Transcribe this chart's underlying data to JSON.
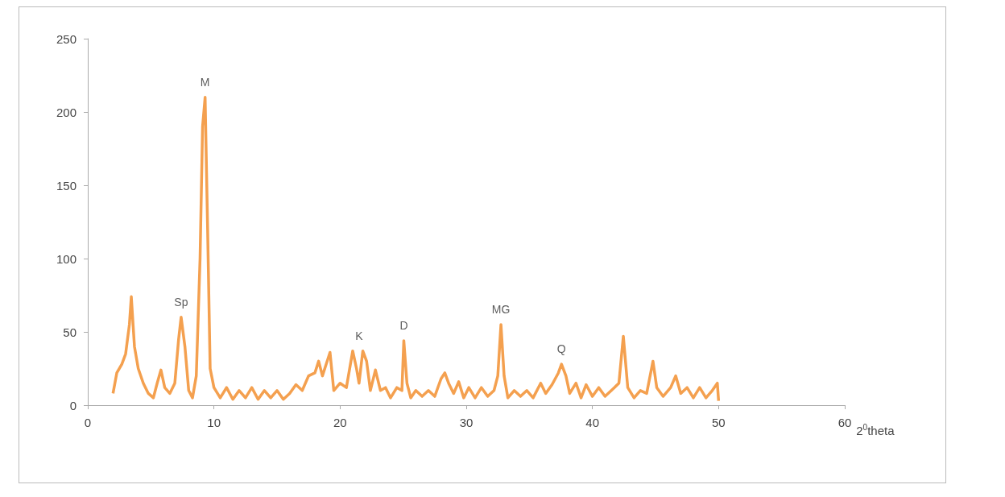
{
  "chart_data": {
    "type": "line",
    "xlabel": "2$^{0}$theta",
    "xlim": [
      0,
      60
    ],
    "xticks": [
      0,
      10,
      20,
      30,
      40,
      50,
      60
    ],
    "ylim": [
      0,
      250
    ],
    "yticks": [
      0,
      50,
      100,
      150,
      200,
      250
    ],
    "grid": false,
    "marker": "none",
    "line_style": "solid",
    "annotations": [
      {
        "text": "Sp",
        "x": 7.4,
        "y": 60
      },
      {
        "text": "M",
        "x": 9.3,
        "y": 210
      },
      {
        "text": "K",
        "x": 21.5,
        "y": 37
      },
      {
        "text": "D",
        "x": 25.05,
        "y": 44
      },
      {
        "text": "MG",
        "x": 32.75,
        "y": 55
      },
      {
        "text": "Q",
        "x": 37.55,
        "y": 28
      }
    ],
    "series": [
      {
        "color": "#f4a04f",
        "x": [
          2.0,
          2.3,
          2.7,
          3.0,
          3.3,
          3.45,
          3.7,
          4.0,
          4.4,
          4.8,
          5.2,
          5.5,
          5.8,
          6.1,
          6.5,
          6.9,
          7.2,
          7.4,
          7.7,
          8.0,
          8.3,
          8.6,
          8.9,
          9.1,
          9.3,
          9.5,
          9.7,
          10.0,
          10.5,
          11,
          11.5,
          12,
          12.5,
          13,
          13.5,
          14,
          14.5,
          15,
          15.5,
          16,
          16.5,
          17,
          17.5,
          18,
          18.3,
          18.6,
          18.9,
          19.2,
          19.5,
          20,
          20.5,
          21,
          21.3,
          21.5,
          21.8,
          22.1,
          22.4,
          22.8,
          23.2,
          23.6,
          24,
          24.5,
          24.9,
          25.05,
          25.3,
          25.6,
          26,
          26.5,
          27,
          27.5,
          28,
          28.3,
          28.6,
          29,
          29.4,
          29.8,
          30.2,
          30.7,
          31.2,
          31.7,
          32.2,
          32.5,
          32.75,
          33.0,
          33.3,
          33.8,
          34.3,
          34.8,
          35.3,
          35.9,
          36.3,
          36.8,
          37.3,
          37.55,
          37.9,
          38.2,
          38.7,
          39.1,
          39.5,
          40,
          40.5,
          41,
          41.5,
          42.1,
          42.45,
          42.8,
          43.3,
          43.8,
          44.3,
          44.8,
          45.1,
          45.6,
          46.2,
          46.6,
          47,
          47.5,
          48,
          48.5,
          49,
          49.5,
          49.9,
          50
        ],
        "values": [
          8,
          22,
          28,
          35,
          55,
          74,
          40,
          25,
          15,
          8,
          5,
          15,
          24,
          12,
          8,
          15,
          45,
          60,
          40,
          10,
          5,
          20,
          100,
          190,
          210,
          120,
          25,
          12,
          5,
          12,
          4,
          10,
          5,
          12,
          4,
          10,
          5,
          10,
          4,
          8,
          14,
          10,
          20,
          22,
          30,
          20,
          28,
          36,
          10,
          15,
          12,
          37,
          25,
          15,
          37,
          30,
          10,
          24,
          10,
          12,
          5,
          12,
          10,
          44,
          15,
          5,
          10,
          6,
          10,
          6,
          18,
          22,
          15,
          8,
          16,
          5,
          12,
          5,
          12,
          6,
          10,
          20,
          55,
          20,
          5,
          10,
          6,
          10,
          5,
          15,
          8,
          14,
          22,
          28,
          20,
          8,
          15,
          5,
          14,
          6,
          12,
          6,
          10,
          15,
          47,
          12,
          5,
          10,
          8,
          30,
          12,
          6,
          12,
          20,
          8,
          12,
          5,
          12,
          5,
          10,
          15,
          3
        ]
      }
    ]
  }
}
